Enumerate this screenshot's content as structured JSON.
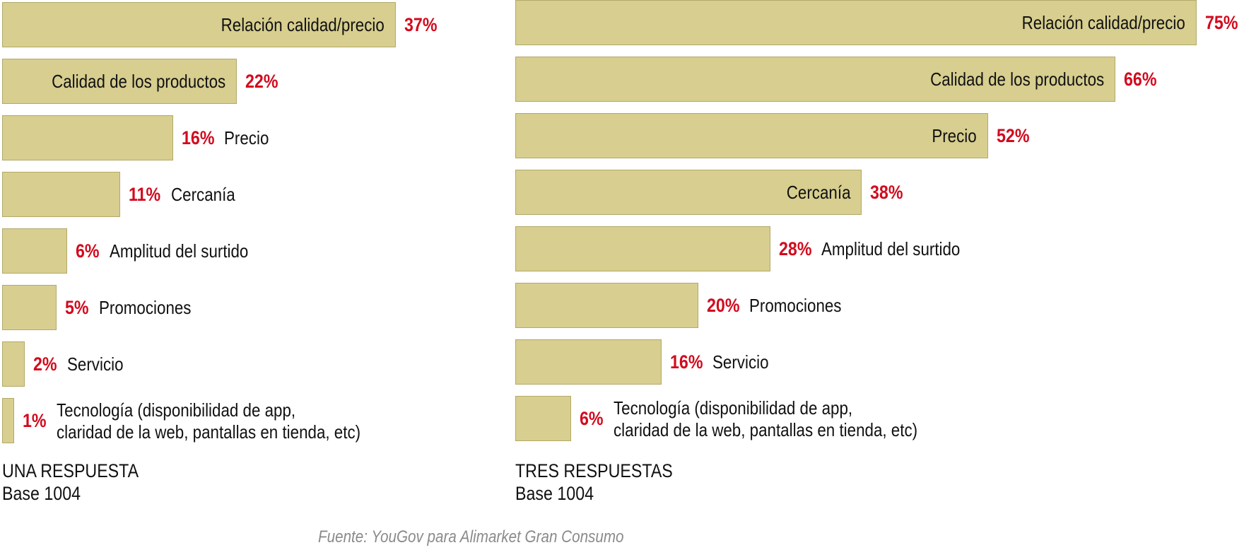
{
  "chart_data": [
    {
      "type": "bar",
      "orientation": "horizontal",
      "title": "UNA RESPUESTA",
      "subtitle": "Base 1004",
      "categories": [
        "Relación calidad/precio",
        "Calidad de los productos",
        "Precio",
        "Cercanía",
        "Amplitud del surtido",
        "Promociones",
        "Servicio",
        "Tecnología (disponibilidad de app, claridad de la web, pantallas en tienda, etc)"
      ],
      "category_lines": [
        [
          "Relación calidad/precio"
        ],
        [
          "Calidad de los productos"
        ],
        [
          "Precio"
        ],
        [
          "Cercanía"
        ],
        [
          "Amplitud del surtido"
        ],
        [
          "Promociones"
        ],
        [
          "Servicio"
        ],
        [
          "Tecnología (disponibilidad de app,",
          "claridad de la web, pantallas en tienda, etc)"
        ]
      ],
      "values": [
        37,
        22,
        16,
        11,
        6,
        5,
        2,
        1
      ],
      "value_labels": [
        "37%",
        "22%",
        "16%",
        "11%",
        "6%",
        "5%",
        "2%",
        "1%"
      ],
      "label_inside": [
        true,
        true,
        false,
        false,
        false,
        false,
        false,
        false
      ],
      "unit": "%",
      "xlim": [
        0,
        40
      ]
    },
    {
      "type": "bar",
      "orientation": "horizontal",
      "title": "TRES RESPUESTAS",
      "subtitle": "Base 1004",
      "categories": [
        "Relación calidad/precio",
        "Calidad de los productos",
        "Precio",
        "Cercanía",
        "Amplitud del surtido",
        "Promociones",
        "Servicio",
        "Tecnología (disponibilidad de app, claridad de la web, pantallas en tienda, etc)"
      ],
      "category_lines": [
        [
          "Relación calidad/precio"
        ],
        [
          "Calidad de los productos"
        ],
        [
          "Precio"
        ],
        [
          "Cercanía"
        ],
        [
          "Amplitud del surtido"
        ],
        [
          "Promociones"
        ],
        [
          "Servicio"
        ],
        [
          "Tecnología (disponibilidad de app,",
          "claridad de la web, pantallas en tienda, etc)"
        ]
      ],
      "values": [
        75,
        66,
        52,
        38,
        28,
        20,
        16,
        6
      ],
      "value_labels": [
        "75%",
        "66%",
        "52%",
        "38%",
        "28%",
        "20%",
        "16%",
        "6%"
      ],
      "label_inside": [
        true,
        true,
        true,
        true,
        false,
        false,
        false,
        false
      ],
      "unit": "%",
      "xlim": [
        0,
        80
      ]
    }
  ],
  "source": "Fuente: YouGov para Alimarket Gran Consumo",
  "colors": {
    "bar_fill": "#d7ce8f",
    "bar_border": "#b3a96a",
    "value_text": "#d20a1e",
    "label_text": "#111111",
    "source_text": "#8a8a8a"
  }
}
